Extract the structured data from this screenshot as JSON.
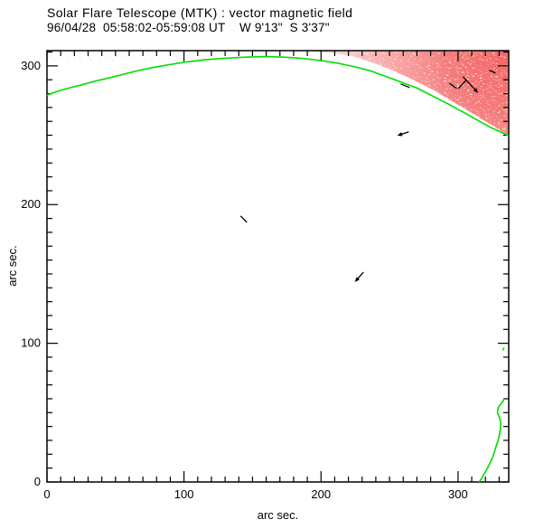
{
  "colors": {
    "background": "#ffffff",
    "limb_green": "#00dd00",
    "vector_black": "#000000",
    "shade_dense": "#f4605f",
    "shade_light": "#f7a0a0",
    "text": "#000000"
  },
  "chart_data": {
    "type": "line",
    "subtype": "solar vector magnetogram: limb contours + field vectors + intensity shading",
    "title": "Solar Flare Telescope (MTK) : vector magnetic field",
    "subtitle": "96/04/28  05:58:02-05:59:08 UT    W 9'13\"  S 3'37\"",
    "xlabel": "arc sec.",
    "ylabel": "arc sec.",
    "xlim": [
      0,
      337
    ],
    "ylim": [
      0,
      311
    ],
    "x_major_ticks": [
      0,
      100,
      200,
      300
    ],
    "y_major_ticks": [
      0,
      100,
      200,
      300
    ],
    "minor_tick_step": 10,
    "grid": "off",
    "legend": "none",
    "limb_contours": [
      {
        "name": "upper-limb",
        "points": [
          [
            0,
            279
          ],
          [
            7,
            281.5
          ],
          [
            16,
            284
          ],
          [
            26,
            286.5
          ],
          [
            35,
            289
          ],
          [
            46,
            291.5
          ],
          [
            56,
            294
          ],
          [
            66,
            296.5
          ],
          [
            78,
            299
          ],
          [
            90,
            301
          ],
          [
            103,
            303
          ],
          [
            116,
            304.5
          ],
          [
            130,
            305.5
          ],
          [
            145,
            306.3
          ],
          [
            160,
            306.7
          ],
          [
            173,
            306.3
          ],
          [
            186,
            305.4
          ],
          [
            199,
            304
          ],
          [
            212,
            302
          ],
          [
            224,
            299.5
          ],
          [
            236,
            296.5
          ],
          [
            247,
            292.5
          ],
          [
            258,
            288.5
          ],
          [
            270,
            284
          ],
          [
            281,
            278.5
          ],
          [
            292,
            273
          ],
          [
            303,
            267
          ],
          [
            314,
            261
          ],
          [
            324,
            255.5
          ],
          [
            331,
            252.5
          ],
          [
            337,
            249.5
          ]
        ]
      },
      {
        "name": "lower-right-limb",
        "points": [
          [
            315.5,
            0
          ],
          [
            317.5,
            3
          ],
          [
            319.5,
            6.5
          ],
          [
            321.5,
            10
          ],
          [
            323.5,
            14
          ],
          [
            325.3,
            18
          ],
          [
            326.8,
            22.5
          ],
          [
            328.2,
            27
          ],
          [
            329.5,
            31
          ],
          [
            330.4,
            35
          ],
          [
            331,
            39
          ],
          [
            331.2,
            43
          ],
          [
            330.2,
            46.5
          ],
          [
            328.8,
            50
          ],
          [
            329.3,
            53.5
          ],
          [
            331,
            56
          ],
          [
            332.8,
            58
          ],
          [
            333.4,
            59.5
          ]
        ]
      },
      {
        "name": "contour-fleck",
        "points": [
          [
            332.9,
            95.3
          ],
          [
            333.5,
            96.5
          ]
        ]
      }
    ],
    "vectors": [
      {
        "x1": 258.1,
        "y1": 287.0,
        "x2": 264.7,
        "y2": 284.4,
        "head": false
      },
      {
        "x1": 293.7,
        "y1": 287.6,
        "x2": 299.0,
        "y2": 283.7,
        "head": false
      },
      {
        "x1": 300.3,
        "y1": 283.7,
        "x2": 306.3,
        "y2": 290.2,
        "head": false
      },
      {
        "x1": 303.6,
        "y1": 292.2,
        "x2": 312.9,
        "y2": 282.4,
        "head": true
      },
      {
        "x1": 322.8,
        "y1": 296.8,
        "x2": 327.4,
        "y2": 294.8,
        "head": false
      },
      {
        "x1": 264.0,
        "y1": 252.4,
        "x2": 258.1,
        "y2": 250.5,
        "head": true
      },
      {
        "x1": 141.3,
        "y1": 191.8,
        "x2": 145.9,
        "y2": 187.2,
        "head": false
      },
      {
        "x1": 231.0,
        "y1": 151.3,
        "x2": 226.4,
        "y2": 146.1,
        "head": true
      }
    ],
    "intensity_shading": {
      "description": "speckled red/pink intensity, densest at top-right corner, fading toward limb contour",
      "corner": "top-right",
      "fade_boundary": [
        [
          183.4,
          311
        ],
        [
          203.2,
          309.7
        ],
        [
          223,
          307.1
        ],
        [
          242.8,
          300.6
        ],
        [
          262.6,
          292.2
        ],
        [
          282.4,
          282.4
        ],
        [
          302.2,
          270.7
        ],
        [
          322,
          258.9
        ],
        [
          337,
          249.8
        ]
      ],
      "edge_speckle_band": {
        "x_range": [
          0,
          165
        ],
        "y_range": [
          303,
          311
        ]
      }
    }
  }
}
